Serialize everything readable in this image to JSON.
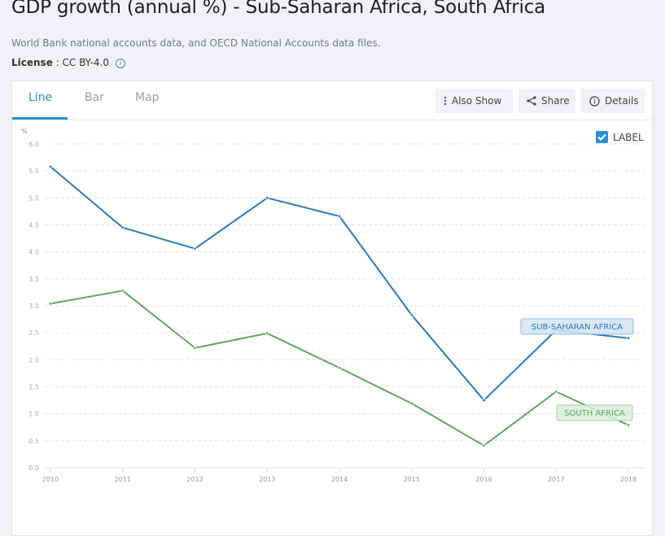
{
  "header": {
    "title": "GDP growth (annual %) - Sub-Saharan Africa, South Africa",
    "source": "World Bank national accounts data, and OECD National Accounts data files.",
    "license_label": "License",
    "license_sep": " : ",
    "license_value": "CC BY-4.0",
    "info_icon": "i"
  },
  "tabs": [
    {
      "label": "Line",
      "active": true
    },
    {
      "label": "Bar",
      "active": false
    },
    {
      "label": "Map",
      "active": false
    }
  ],
  "toolbar": {
    "also_show": "Also Show",
    "share": "Share",
    "details": "Details"
  },
  "label_toggle": {
    "label": "LABEL",
    "checked": true
  },
  "colors": {
    "accent": "#2b8fd6",
    "series1": "#2d7bb8",
    "series2": "#5fa560"
  },
  "chart_data": {
    "type": "line",
    "title": "GDP growth (annual %) - Sub-Saharan Africa, South Africa",
    "ylabel": "%",
    "xlabel": "",
    "ylim": [
      0,
      6
    ],
    "yticks": [
      "0.0",
      "0.5",
      "1.0",
      "1.5",
      "2.0",
      "2.5",
      "3.0",
      "3.5",
      "4.0",
      "4.5",
      "5.0",
      "5.5",
      "6.0"
    ],
    "categories": [
      "2010",
      "2011",
      "2012",
      "2013",
      "2014",
      "2015",
      "2016",
      "2017",
      "2018"
    ],
    "grid": true,
    "series": [
      {
        "name": "SUB-SAHARAN AFRICA",
        "color": "#2d7bb8",
        "label_fill": "#d3e4f2",
        "label_stroke": "#8fbde0",
        "values": [
          5.58,
          4.45,
          4.06,
          5.0,
          4.66,
          2.83,
          1.25,
          2.55,
          2.4
        ]
      },
      {
        "name": "SOUTH AFRICA",
        "color": "#5fa560",
        "label_fill": "#dbeedc",
        "label_stroke": "#a4cfa5",
        "values": [
          3.04,
          3.28,
          2.22,
          2.49,
          1.85,
          1.19,
          0.41,
          1.41,
          0.79
        ]
      }
    ]
  }
}
